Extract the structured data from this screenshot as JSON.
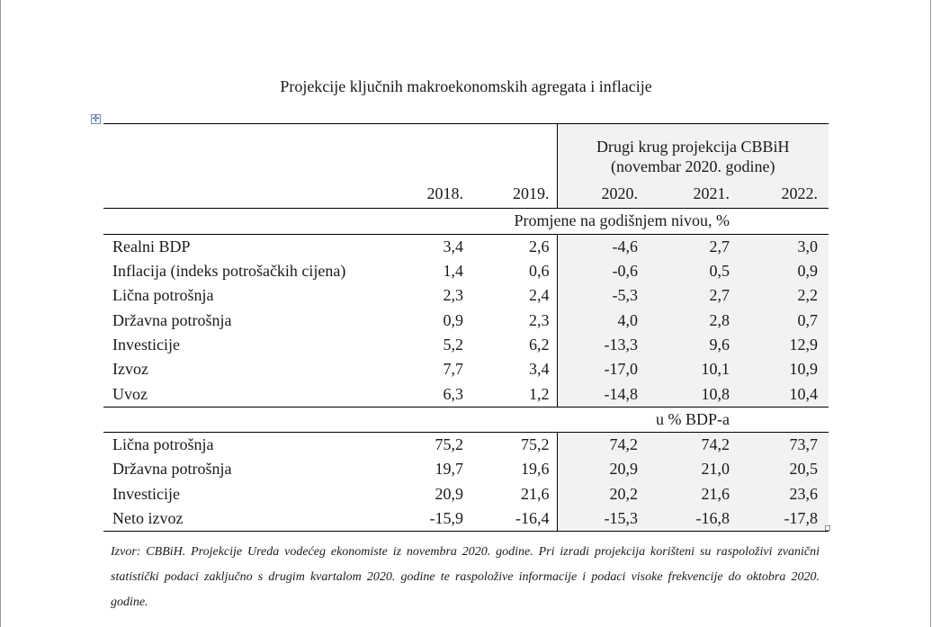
{
  "title": "Projekcije ključnih makroekonomskih agregata i inflacije",
  "header": {
    "projection_line1": "Drugi krug projekcija CBBiH",
    "projection_line2": "(novembar 2020. godine)",
    "years": [
      "2018.",
      "2019.",
      "2020.",
      "2021.",
      "2022."
    ]
  },
  "section1": {
    "unit": "Promjene na godišnjem nivou, %",
    "rows": [
      {
        "label": "Realni BDP",
        "values": [
          "3,4",
          "2,6",
          "-4,6",
          "2,7",
          "3,0"
        ]
      },
      {
        "label": "Inflacija (indeks potrošačkih cijena)",
        "values": [
          "1,4",
          "0,6",
          "-0,6",
          "0,5",
          "0,9"
        ]
      },
      {
        "label": "Lična potrošnja",
        "values": [
          "2,3",
          "2,4",
          "-5,3",
          "2,7",
          "2,2"
        ]
      },
      {
        "label": "Državna potrošnja",
        "values": [
          "0,9",
          "2,3",
          "4,0",
          "2,8",
          "0,7"
        ]
      },
      {
        "label": "Investicije",
        "values": [
          "5,2",
          "6,2",
          "-13,3",
          "9,6",
          "12,9"
        ]
      },
      {
        "label": "Izvoz",
        "values": [
          "7,7",
          "3,4",
          "-17,0",
          "10,1",
          "10,9"
        ]
      },
      {
        "label": "Uvoz",
        "values": [
          "6,3",
          "1,2",
          "-14,8",
          "10,8",
          "10,4"
        ]
      }
    ]
  },
  "section2": {
    "unit": "u % BDP-a",
    "rows": [
      {
        "label": "Lična potrošnja",
        "values": [
          "75,2",
          "75,2",
          "74,2",
          "74,2",
          "73,7"
        ]
      },
      {
        "label": "Državna potrošnja",
        "values": [
          "19,7",
          "19,6",
          "20,9",
          "21,0",
          "20,5"
        ]
      },
      {
        "label": "Investicije",
        "values": [
          "20,9",
          "21,6",
          "20,2",
          "21,6",
          "23,6"
        ]
      },
      {
        "label": "Neto izvoz",
        "values": [
          "-15,9",
          "-16,4",
          "-15,3",
          "-16,8",
          "-17,8"
        ]
      }
    ]
  },
  "note": "Izvor: CBBiH. Projekcije Ureda vodećeg ekonomiste iz novembra 2020. godine. Pri izradi projekcija korišteni su raspoloživi zvanični statistički podaci zaključno s drugim kvartalom 2020. godine te raspoložive informacije i podaci visoke frekvencije do oktobra 2020. godine."
}
